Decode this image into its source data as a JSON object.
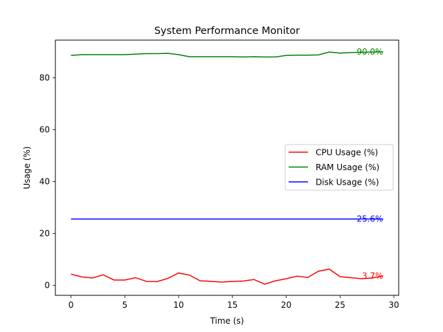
{
  "chart_data": {
    "type": "line",
    "title": "System Performance Monitor",
    "xlabel": "Time (s)",
    "ylabel": "Usage (%)",
    "xlim": [
      -1.45,
      30.45
    ],
    "ylim": [
      -3.8,
      94.5
    ],
    "xticks": [
      0,
      5,
      10,
      15,
      20,
      25,
      30
    ],
    "yticks": [
      0,
      20,
      40,
      60,
      80
    ],
    "grid": false,
    "legend_position": "center-right",
    "x": [
      0,
      1,
      2,
      3,
      4,
      5,
      6,
      7,
      8,
      9,
      10,
      11,
      12,
      13,
      14,
      15,
      16,
      17,
      18,
      19,
      20,
      21,
      22,
      23,
      24,
      25,
      26,
      27,
      28,
      29
    ],
    "series": [
      {
        "name": "CPU Usage (%)",
        "color": "#ff0000",
        "values": [
          4.4,
          3.3,
          2.9,
          4.1,
          2.1,
          2.1,
          3.0,
          1.6,
          1.5,
          2.7,
          4.8,
          4.0,
          1.8,
          1.6,
          1.3,
          1.6,
          1.7,
          2.3,
          0.5,
          1.8,
          2.6,
          3.6,
          3.1,
          5.5,
          6.3,
          3.4,
          3.0,
          2.6,
          2.9,
          3.7
        ],
        "end_label": "3.7%"
      },
      {
        "name": "RAM Usage (%)",
        "color": "#008000",
        "values": [
          88.6,
          88.9,
          88.9,
          88.9,
          88.9,
          88.9,
          89.1,
          89.3,
          89.3,
          89.4,
          88.9,
          88.1,
          88.1,
          88.1,
          88.1,
          88.1,
          88.0,
          88.1,
          88.0,
          88.0,
          88.6,
          88.7,
          88.7,
          88.8,
          89.9,
          89.5,
          89.7,
          89.8,
          89.9,
          90.0
        ],
        "end_label": "90.0%"
      },
      {
        "name": "Disk Usage (%)",
        "color": "#0000ff",
        "values": [
          25.6,
          25.6,
          25.6,
          25.6,
          25.6,
          25.6,
          25.6,
          25.6,
          25.6,
          25.6,
          25.6,
          25.6,
          25.6,
          25.6,
          25.6,
          25.6,
          25.6,
          25.6,
          25.6,
          25.6,
          25.6,
          25.6,
          25.6,
          25.6,
          25.6,
          25.6,
          25.6,
          25.6,
          25.6,
          25.6
        ],
        "end_label": "25.6%"
      }
    ]
  }
}
